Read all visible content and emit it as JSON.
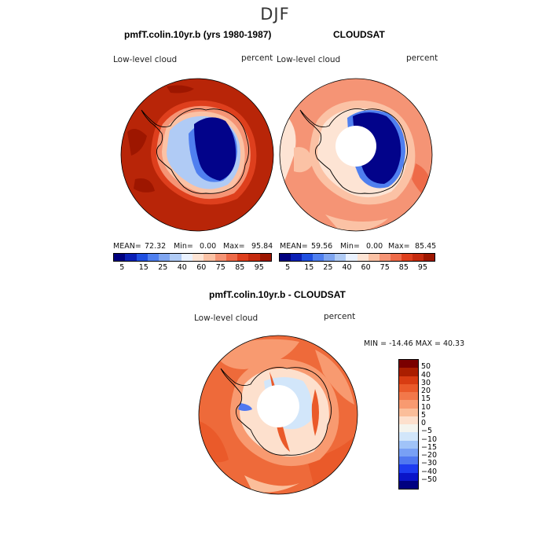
{
  "title": "DJF",
  "panels": [
    {
      "title": "pmfT.colin.10yr.b (yrs 1980-1987)",
      "variable": "Low-level cloud",
      "units": "percent",
      "stats": {
        "mean_label": "MEAN=",
        "mean": "72.32",
        "min_label": "Min=",
        "min": "0.00",
        "max_label": "Max=",
        "max": "95.84"
      },
      "colorbar_ticks": [
        "5",
        "15",
        "25",
        "40",
        "60",
        "75",
        "85",
        "95"
      ]
    },
    {
      "title": "CLOUDSAT",
      "variable": "Low-level cloud",
      "units": "percent",
      "stats": {
        "mean_label": "MEAN=",
        "mean": "59.56",
        "min_label": "Min=",
        "min": "0.00",
        "max_label": "Max=",
        "max": "85.45"
      },
      "colorbar_ticks": [
        "5",
        "15",
        "25",
        "40",
        "60",
        "75",
        "85",
        "95"
      ]
    }
  ],
  "diff_panel": {
    "title": "pmfT.colin.10yr.b - CLOUDSAT",
    "variable": "Low-level cloud",
    "units": "percent",
    "minmax_text": "MIN = -14.46 MAX =  40.33",
    "colorbar_ticks": [
      "−50",
      "−40",
      "−30",
      "−20",
      "−15",
      "−10",
      "−5",
      "0",
      "5",
      "10",
      "15",
      "20",
      "30",
      "40",
      "50"
    ]
  },
  "colors": {
    "abs_scale": [
      "#00007f",
      "#0a1fb5",
      "#1f4fe0",
      "#4f7fef",
      "#7fa5f0",
      "#b0cbf5",
      "#eaf2ff",
      "#fde4d4",
      "#fbc2a5",
      "#f59475",
      "#ee6a48",
      "#de3f1d",
      "#c52a0e",
      "#9d1600"
    ],
    "diff_scale": [
      "#000080",
      "#0a14c8",
      "#1e3cf0",
      "#5078f0",
      "#78a0f5",
      "#a0c3f8",
      "#d2e6fa",
      "#f4f4ee",
      "#fde0cd",
      "#fbbe9a",
      "#f89a70",
      "#f2784a",
      "#ea5a2a",
      "#d83c12",
      "#aa1e00",
      "#7a0000"
    ],
    "ocean_model": "#b82508",
    "ocean_cloudsat": "#f5a27e",
    "ocean_diff": "#ee6a3a",
    "antarctica_deep": "#02038a",
    "land_outline": "#000000"
  },
  "chart_data": [
    {
      "type": "heatmap",
      "title": "pmfT.colin.10yr.b (yrs 1980-1987)",
      "projection": "south-polar-stereographic",
      "variable": "Low-level cloud",
      "units": "percent",
      "mean": 72.32,
      "min": 0.0,
      "max": 95.84,
      "levels": [
        5,
        15,
        25,
        40,
        60,
        75,
        85,
        95
      ]
    },
    {
      "type": "heatmap",
      "title": "CLOUDSAT",
      "projection": "south-polar-stereographic",
      "variable": "Low-level cloud",
      "units": "percent",
      "mean": 59.56,
      "min": 0.0,
      "max": 85.45,
      "levels": [
        5,
        15,
        25,
        40,
        60,
        75,
        85,
        95
      ]
    },
    {
      "type": "heatmap",
      "title": "pmfT.colin.10yr.b - CLOUDSAT",
      "projection": "south-polar-stereographic",
      "variable": "Low-level cloud",
      "units": "percent",
      "min": -14.46,
      "max": 40.33,
      "levels": [
        -50,
        -40,
        -30,
        -20,
        -15,
        -10,
        -5,
        0,
        5,
        10,
        15,
        20,
        30,
        40,
        50
      ]
    }
  ]
}
